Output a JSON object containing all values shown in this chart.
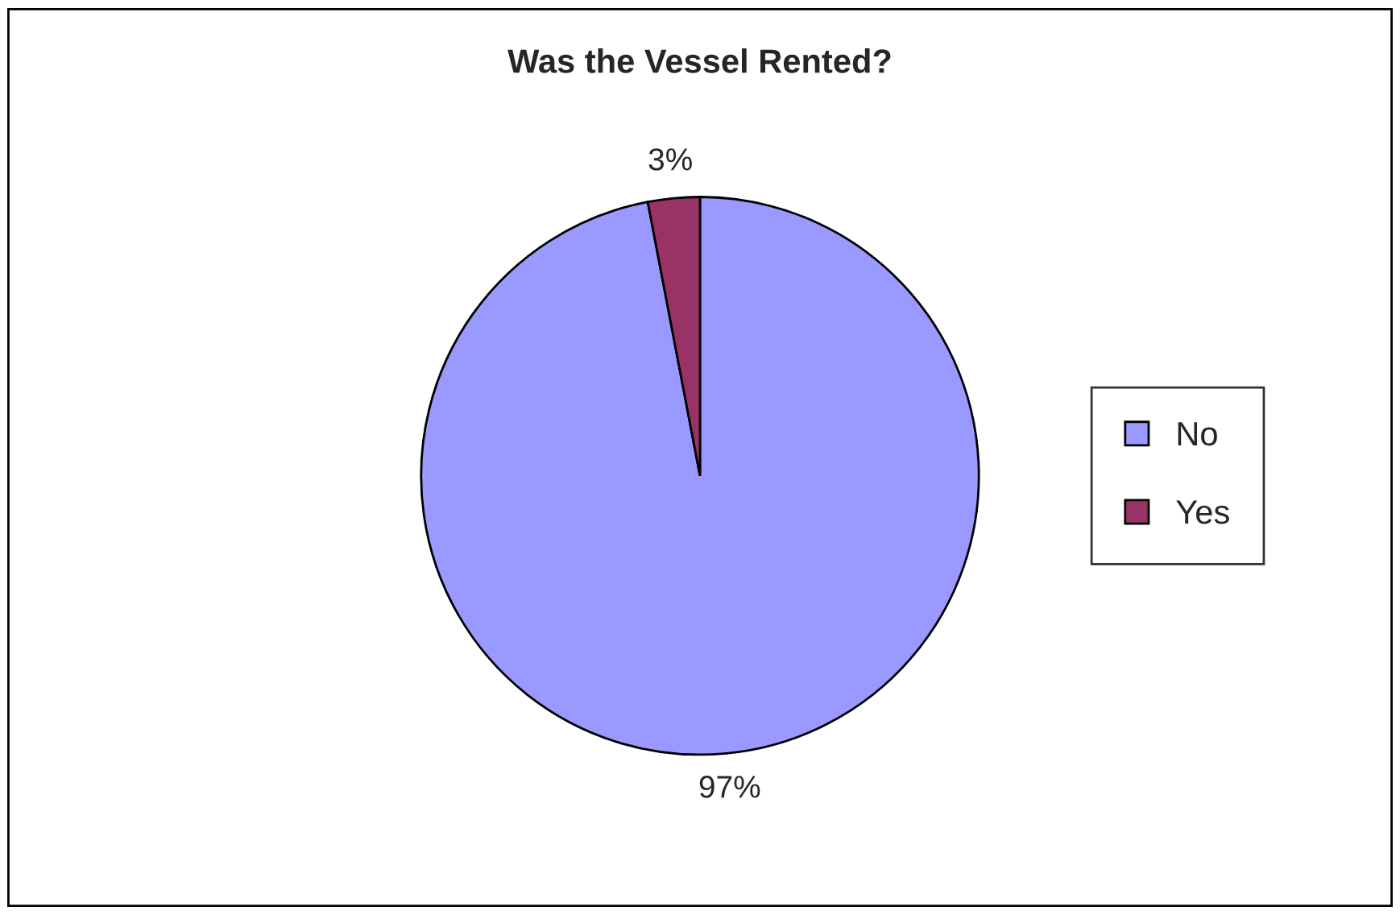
{
  "chart_data": {
    "type": "pie",
    "title": "Was the Vessel Rented?",
    "categories": [
      "No",
      "Yes"
    ],
    "values": [
      97,
      3
    ],
    "value_labels": [
      "97%",
      "3%"
    ],
    "colors": [
      "#9999ff",
      "#993366"
    ],
    "legend": "right"
  }
}
